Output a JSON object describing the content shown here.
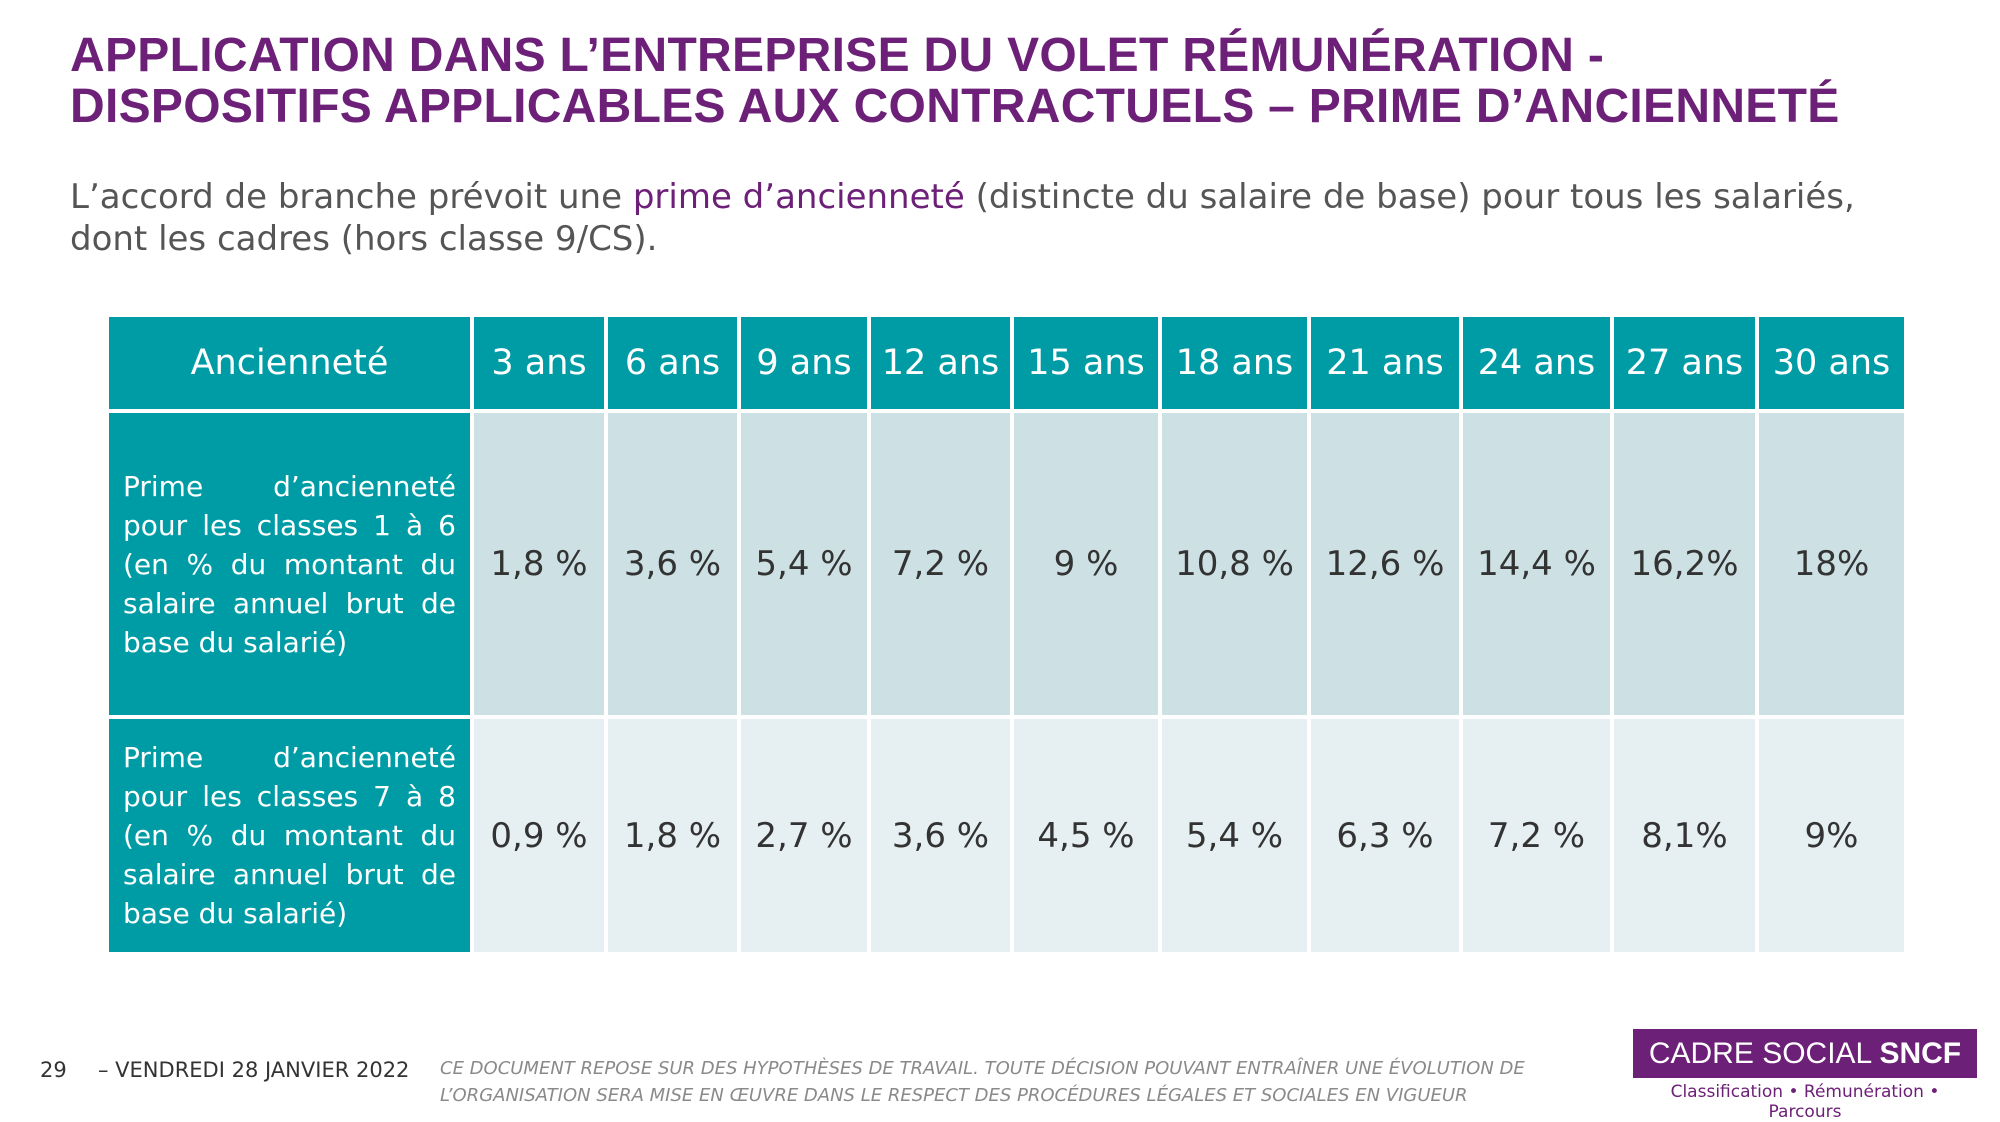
{
  "header": {
    "title": [
      "APPLICATION DANS L’ENTREPRISE DU VOLET RÉMUNÉRATION -",
      "DISPOSITIFS APPLICABLES AUX CONTRACTUELS – PRIME D’ANCIENNETÉ"
    ],
    "subtitle": [
      "L’accord de branche prévoit une ",
      "prime d’ancienneté",
      " (distincte du salaire de base) pour tous les salariés, dont les cadres (hors classe 9/CS)."
    ]
  },
  "table": {
    "header": [
      "Ancienneté",
      "3 ans",
      "6 ans",
      "9 ans",
      "12 ans",
      "15 ans",
      "18 ans",
      "21 ans",
      "24 ans",
      "27 ans",
      "30 ans"
    ],
    "rows": [
      [
        "Prime d’ancienneté pour les classes 1 à 6 (en % du montant du salaire annuel brut de base du salarié)",
        "1,8 %",
        "3,6 %",
        "5,4 %",
        "7,2 %",
        "9 %",
        "10,8 %",
        "12,6 %",
        "14,4 %",
        "16,2%",
        "18%"
      ],
      [
        "Prime d’ancienneté pour les classes 7 à 8 (en % du montant du salaire annuel brut de base du salarié)",
        "0,9 %",
        "1,8 %",
        "2,7 %",
        "3,6 %",
        "4,5 %",
        "5,4 %",
        "6,3 %",
        "7,2 %",
        "8,1%",
        "9%"
      ]
    ]
  },
  "footer": {
    "page": "29",
    "date": "– VENDREDI 28 JANVIER 2022",
    "disclaimer": "CE DOCUMENT REPOSE SUR DES HYPOTHÈSES DE TRAVAIL. TOUTE DÉCISION POUVANT ENTRAÎNER UNE ÉVOLUTION DE L’ORGANISATION SERA MISE EN ŒUVRE DANS LE RESPECT DES PROCÉDURES LÉGALES ET SOCIALES EN VIGUEUR",
    "logo": [
      "CADRE SOCIAL ",
      "SNCF"
    ],
    "tagline": "Classification • Rémunération • Parcours"
  }
}
